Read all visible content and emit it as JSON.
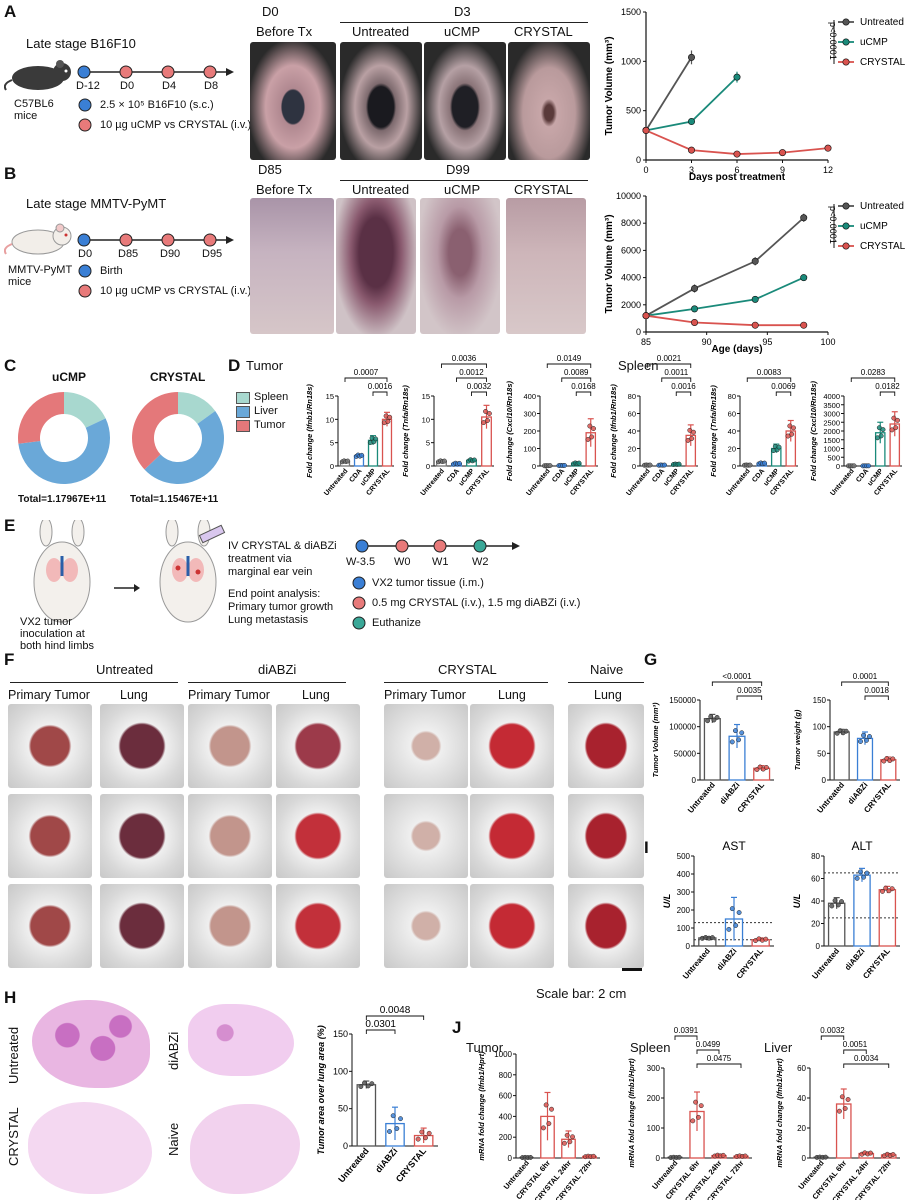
{
  "panels": {
    "A": "A",
    "B": "B",
    "C": "C",
    "D": "D",
    "E": "E",
    "F": "F",
    "G": "G",
    "H": "H",
    "I": "I",
    "J": "J"
  },
  "panel_a": {
    "title": "Late stage B16F10",
    "mouse": "C57BL6\nmice",
    "timeline": [
      "D-12",
      "D0",
      "D4",
      "D8"
    ],
    "legend": [
      "2.5 × 10⁵ B16F10 (s.c.)",
      "10 µg uCMP vs CRYSTAL (i.v.)"
    ],
    "col_day0": "D0",
    "col_day3": "D3",
    "before": "Before Tx",
    "groups": [
      "Untreated",
      "uCMP",
      "CRYSTAL"
    ]
  },
  "panel_b": {
    "title": "Late stage MMTV-PyMT",
    "mouse": "MMTV-PyMT\nmice",
    "timeline": [
      "D0",
      "D85",
      "D90",
      "D95"
    ],
    "legend": [
      "Birth",
      "10 µg uCMP vs CRYSTAL (i.v.)"
    ],
    "col_day0": "D85",
    "col_day3": "D99",
    "before": "Before Tx",
    "groups": [
      "Untreated",
      "uCMP",
      "CRYSTAL"
    ]
  },
  "panel_c": {
    "titles": [
      "uCMP",
      "CRYSTAL"
    ],
    "totals": [
      "Total=1.17967E+11",
      "Total=1.15467E+11"
    ],
    "legend": [
      "Spleen",
      "Liver",
      "Tumor"
    ],
    "colors": {
      "spleen": "#a8d8cf",
      "liver": "#6aa8d8",
      "tumor": "#e4787a"
    }
  },
  "panel_d": {
    "tumor_label": "Tumor",
    "spleen_label": "Spleen"
  },
  "panel_e": {
    "treatment": "IV CRYSTAL & diABZi\ntreatment via\nmarginal ear vein",
    "endpoint": "End point analysis:\nPrimary tumor growth\nLung metastasis",
    "inoculation": "VX2 tumor\ninoculation at\nboth hind limbs",
    "timeline": [
      "W-3.5",
      "W0",
      "W1",
      "W2"
    ],
    "legend": [
      "VX2 tumor tissue (i.m.)",
      "0.5 mg CRYSTAL (i.v.), 1.5 mg diABZi (i.v.)",
      "Euthanize"
    ]
  },
  "panel_f": {
    "groups": [
      "Untreated",
      "diABZi",
      "CRYSTAL",
      "Naive"
    ],
    "sub": [
      "Primary Tumor",
      "Lung"
    ],
    "scale_bar": "Scale bar: 2 cm"
  },
  "panel_h": {
    "row_labels": [
      "Untreated",
      "diABZi",
      "CRYSTAL",
      "Naive"
    ]
  },
  "panel_j": {
    "titles": [
      "Tumor",
      "Spleen",
      "Liver"
    ]
  },
  "chart_data": [
    {
      "id": "A-growth",
      "type": "line",
      "xlabel": "Days post treatment",
      "ylabel": "Tumor Volume (mm³)",
      "xlim": [
        0,
        12
      ],
      "ylim": [
        0,
        1500
      ],
      "xticks": [
        0,
        3,
        6,
        9,
        12
      ],
      "yticks": [
        0,
        500,
        1000,
        1500
      ],
      "pvalue": "p<0.0001",
      "series": [
        {
          "name": "Untreated",
          "color": "#555555",
          "x": [
            0,
            3
          ],
          "y": [
            300,
            1040
          ],
          "err": [
            20,
            70
          ]
        },
        {
          "name": "uCMP",
          "color": "#1a8a7a",
          "x": [
            0,
            3,
            6
          ],
          "y": [
            300,
            390,
            840
          ],
          "err": [
            20,
            20,
            55
          ]
        },
        {
          "name": "CRYSTAL",
          "color": "#d9534f",
          "x": [
            0,
            3,
            6,
            9,
            12
          ],
          "y": [
            300,
            100,
            60,
            75,
            120
          ],
          "err": [
            20,
            15,
            10,
            10,
            25
          ]
        }
      ]
    },
    {
      "id": "B-growth",
      "type": "line",
      "xlabel": "Age (days)",
      "ylabel": "Tumor Volume (mm³)",
      "xlim": [
        85,
        100
      ],
      "ylim": [
        0,
        10000
      ],
      "xticks": [
        85,
        90,
        95,
        100
      ],
      "yticks": [
        0,
        2000,
        4000,
        6000,
        8000,
        10000
      ],
      "pvalue": "p<0.0001",
      "series": [
        {
          "name": "Untreated",
          "color": "#555555",
          "x": [
            85,
            89,
            94,
            98
          ],
          "y": [
            1200,
            3200,
            5200,
            8400
          ],
          "err": [
            150,
            300,
            300,
            300
          ]
        },
        {
          "name": "uCMP",
          "color": "#1a8a7a",
          "x": [
            85,
            89,
            94,
            98
          ],
          "y": [
            1200,
            1700,
            2400,
            4000
          ],
          "err": [
            150,
            100,
            120,
            150
          ]
        },
        {
          "name": "CRYSTAL",
          "color": "#d9534f",
          "x": [
            85,
            89,
            94,
            98
          ],
          "y": [
            1200,
            700,
            500,
            500
          ],
          "err": [
            150,
            60,
            50,
            50
          ]
        }
      ]
    },
    {
      "id": "C-uCMP",
      "type": "pie",
      "categories": [
        "Spleen",
        "Liver",
        "Tumor"
      ],
      "values": [
        18,
        55,
        27
      ]
    },
    {
      "id": "C-CRYSTAL",
      "type": "pie",
      "categories": [
        "Spleen",
        "Liver",
        "Tumor"
      ],
      "values": [
        15,
        48,
        37
      ]
    },
    {
      "id": "D1",
      "type": "bar",
      "ylabel": "Fold change (Ifnb1/Rn18s)",
      "ylim": [
        0,
        15
      ],
      "yticks": [
        0,
        5,
        10,
        15
      ],
      "categories": [
        "Untreated",
        "CDA",
        "uCMP",
        "CRYSTAL"
      ],
      "values": [
        1,
        2.2,
        5.5,
        10
      ],
      "err": [
        0.2,
        0.3,
        1,
        1.5
      ],
      "pvalues": [
        "0.0007",
        "0.0016"
      ]
    },
    {
      "id": "D2",
      "type": "bar",
      "ylabel": "Fold change (Tnfa/Rn18s)",
      "ylim": [
        0,
        15
      ],
      "yticks": [
        0,
        5,
        10,
        15
      ],
      "categories": [
        "Untreated",
        "CDA",
        "uCMP",
        "CRYSTAL"
      ],
      "values": [
        1,
        0.5,
        1.2,
        10.5
      ],
      "err": [
        0.2,
        0.2,
        0.3,
        2.5
      ],
      "pvalues": [
        "0.0036",
        "0.0012",
        "0.0032"
      ]
    },
    {
      "id": "D3",
      "type": "bar",
      "ylabel": "Fold change (Cxcl10/Rn18s)",
      "ylim": [
        0,
        400
      ],
      "yticks": [
        0,
        100,
        200,
        300,
        400
      ],
      "categories": [
        "Untreated",
        "CDA",
        "uCMP",
        "CRYSTAL"
      ],
      "values": [
        2,
        3,
        15,
        190
      ],
      "err": [
        1,
        1,
        5,
        80
      ],
      "pvalues": [
        "0.0149",
        "0.0089",
        "0.0168"
      ]
    },
    {
      "id": "D4",
      "type": "bar",
      "ylabel": "Fold change (Ifnb1/Rn18s)",
      "ylim": [
        0,
        80
      ],
      "yticks": [
        0,
        20,
        40,
        60,
        80
      ],
      "categories": [
        "Untreated",
        "CDA",
        "uCMP",
        "CRYSTAL"
      ],
      "values": [
        1,
        1,
        2,
        35
      ],
      "err": [
        0.3,
        0.3,
        0.5,
        12
      ],
      "pvalues": [
        "0.0021",
        "0.0011",
        "0.0016"
      ]
    },
    {
      "id": "D5",
      "type": "bar",
      "ylabel": "Fold change (Tnfa/Rn18s)",
      "ylim": [
        0,
        80
      ],
      "yticks": [
        0,
        20,
        40,
        60,
        80
      ],
      "categories": [
        "Untreated",
        "CDA",
        "uCMP",
        "CRYSTAL"
      ],
      "values": [
        1,
        3,
        20,
        40
      ],
      "err": [
        0.3,
        1,
        5,
        12
      ],
      "pvalues": [
        "0.0083",
        "0.0069"
      ]
    },
    {
      "id": "D6",
      "type": "bar",
      "ylabel": "Fold change (Cxcl10/Rn18s)",
      "ylim": [
        0,
        4000
      ],
      "yticks": [
        0,
        500,
        1000,
        1500,
        2000,
        2500,
        3000,
        3500,
        4000
      ],
      "categories": [
        "Untreated",
        "CDA",
        "uCMP",
        "CRYSTAL"
      ],
      "values": [
        10,
        10,
        1900,
        2400
      ],
      "err": [
        5,
        5,
        600,
        700
      ],
      "pvalues": [
        "0.0283",
        "0.0182"
      ]
    },
    {
      "id": "G1",
      "type": "bar",
      "ylabel": "Tumor Volume (mm³)",
      "ylim": [
        0,
        150000
      ],
      "yticks": [
        0,
        50000,
        100000,
        150000
      ],
      "categories": [
        "Untreated",
        "diABZi",
        "CRYSTAL"
      ],
      "values": [
        115000,
        82000,
        22000
      ],
      "err": [
        8000,
        22000,
        5000
      ],
      "pvalues": [
        "<0.0001",
        "0.0035"
      ]
    },
    {
      "id": "G2",
      "type": "bar",
      "ylabel": "Tumor weight (g)",
      "ylim": [
        0,
        150
      ],
      "yticks": [
        0,
        50,
        100,
        150
      ],
      "categories": [
        "Untreated",
        "diABZi",
        "CRYSTAL"
      ],
      "values": [
        90,
        78,
        38
      ],
      "err": [
        5,
        12,
        5
      ],
      "pvalues": [
        "0.0001",
        "0.0018"
      ]
    },
    {
      "id": "I1",
      "type": "bar",
      "title": "AST",
      "ylabel": "U/L",
      "ylim": [
        0,
        500
      ],
      "yticks": [
        0,
        100,
        200,
        300,
        400,
        500
      ],
      "categories": [
        "Untreated",
        "diABZi",
        "CRYSTAL"
      ],
      "values": [
        45,
        150,
        35
      ],
      "err": [
        5,
        120,
        10
      ],
      "ref_lines": [
        130,
        35
      ]
    },
    {
      "id": "I2",
      "type": "bar",
      "title": "ALT",
      "ylabel": "U/L",
      "ylim": [
        0,
        80
      ],
      "yticks": [
        0,
        20,
        40,
        60,
        80
      ],
      "categories": [
        "Untreated",
        "diABZi",
        "CRYSTAL"
      ],
      "values": [
        38,
        63,
        50
      ],
      "err": [
        5,
        6,
        3
      ],
      "ref_lines": [
        65,
        25
      ]
    },
    {
      "id": "H1",
      "type": "bar",
      "ylabel": "Tumor area over lung area (%)",
      "ylim": [
        0,
        150
      ],
      "yticks": [
        0,
        50,
        100,
        150
      ],
      "categories": [
        "Untreated",
        "diABZi",
        "CRYSTAL"
      ],
      "values": [
        82,
        30,
        14
      ],
      "err": [
        5,
        22,
        10
      ],
      "pvalues": [
        "0.0048",
        "0.0301"
      ]
    },
    {
      "id": "J1",
      "type": "bar",
      "ylabel": "mRNA fold change (Ifnb1/Hprt)",
      "ylim": [
        0,
        1000
      ],
      "yticks": [
        0,
        200,
        400,
        600,
        800,
        1000
      ],
      "categories": [
        "Untreated",
        "CRYSTAL 6hr",
        "CRYSTAL 24hr",
        "CRYSTAL 72hr"
      ],
      "values": [
        5,
        400,
        180,
        15
      ],
      "err": [
        2,
        230,
        80,
        5
      ]
    },
    {
      "id": "J2",
      "type": "bar",
      "ylabel": "mRNA fold change (Ifnb1/Hprt)",
      "ylim": [
        0,
        300
      ],
      "yticks": [
        0,
        100,
        200,
        300
      ],
      "categories": [
        "Untreated",
        "CRYSTAL 6hr",
        "CRYSTAL 24hr",
        "CRYSTAL 72hr"
      ],
      "values": [
        2,
        155,
        8,
        6
      ],
      "err": [
        1,
        65,
        3,
        2
      ],
      "pvalues": [
        "0.0391",
        "0.0499",
        "0.0475"
      ]
    },
    {
      "id": "J3",
      "type": "bar",
      "ylabel": "mRNA fold change (Ifnb1/Hprt)",
      "ylim": [
        0,
        60
      ],
      "yticks": [
        0,
        20,
        40,
        60
      ],
      "categories": [
        "Untreated",
        "CRYSTAL 6hr",
        "CRYSTAL 24hr",
        "CRYSTAL 72hr"
      ],
      "values": [
        0.5,
        36,
        3,
        2
      ],
      "err": [
        0.2,
        10,
        1,
        1
      ],
      "pvalues": [
        "0.0032",
        "0.0051",
        "0.0034"
      ]
    }
  ]
}
